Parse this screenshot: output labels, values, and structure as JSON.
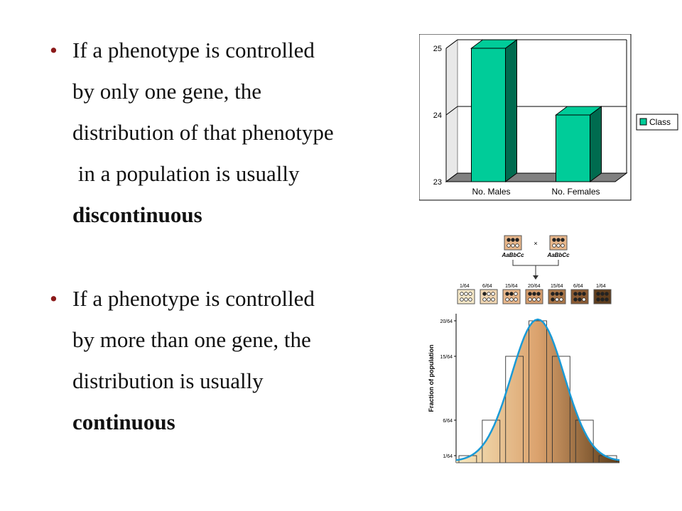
{
  "slide": {
    "bullet1": {
      "marker": "•",
      "lines": [
        "If a phenotype is controlled",
        "by only one gene, the",
        "distribution of that phenotype",
        " in a population is usually"
      ],
      "emphasis": "discontinuous"
    },
    "bullet2": {
      "marker": "•",
      "lines": [
        "If a phenotype is controlled",
        "by more than one gene, the",
        "distribution is usually"
      ],
      "emphasis": "continuous"
    }
  },
  "chart_data": [
    {
      "type": "bar",
      "categories": [
        "No. Males",
        "No. Females"
      ],
      "series": [
        {
          "name": "Class",
          "values": [
            25,
            24
          ]
        }
      ],
      "ylim": [
        23,
        25
      ],
      "yticks": [
        "23",
        "24",
        "25"
      ],
      "grid": true,
      "legend": "right",
      "colors": {
        "bar": "#00cc99",
        "bar_side": "#006b4f",
        "floor": "#808080"
      }
    },
    {
      "type": "bar",
      "categories": [
        "1/64",
        "6/64",
        "15/64",
        "20/64",
        "15/64",
        "6/64",
        "1/64"
      ],
      "values": [
        1,
        6,
        15,
        20,
        15,
        6,
        1
      ],
      "ylabel": "Fraction of population",
      "yticks": [
        "1/64",
        "6/64",
        "15/64",
        "20/64"
      ],
      "cross": {
        "parent1": "AaBbCc",
        "parent2": "AaBbCc",
        "symbol": "×"
      },
      "box_dark_counts": [
        0,
        1,
        2,
        3,
        4,
        5,
        6
      ],
      "colors": {
        "curve": "#1a9ad6",
        "light": "#f7e9bf",
        "mid": "#dba26d",
        "dark": "#5a3a17"
      }
    }
  ]
}
